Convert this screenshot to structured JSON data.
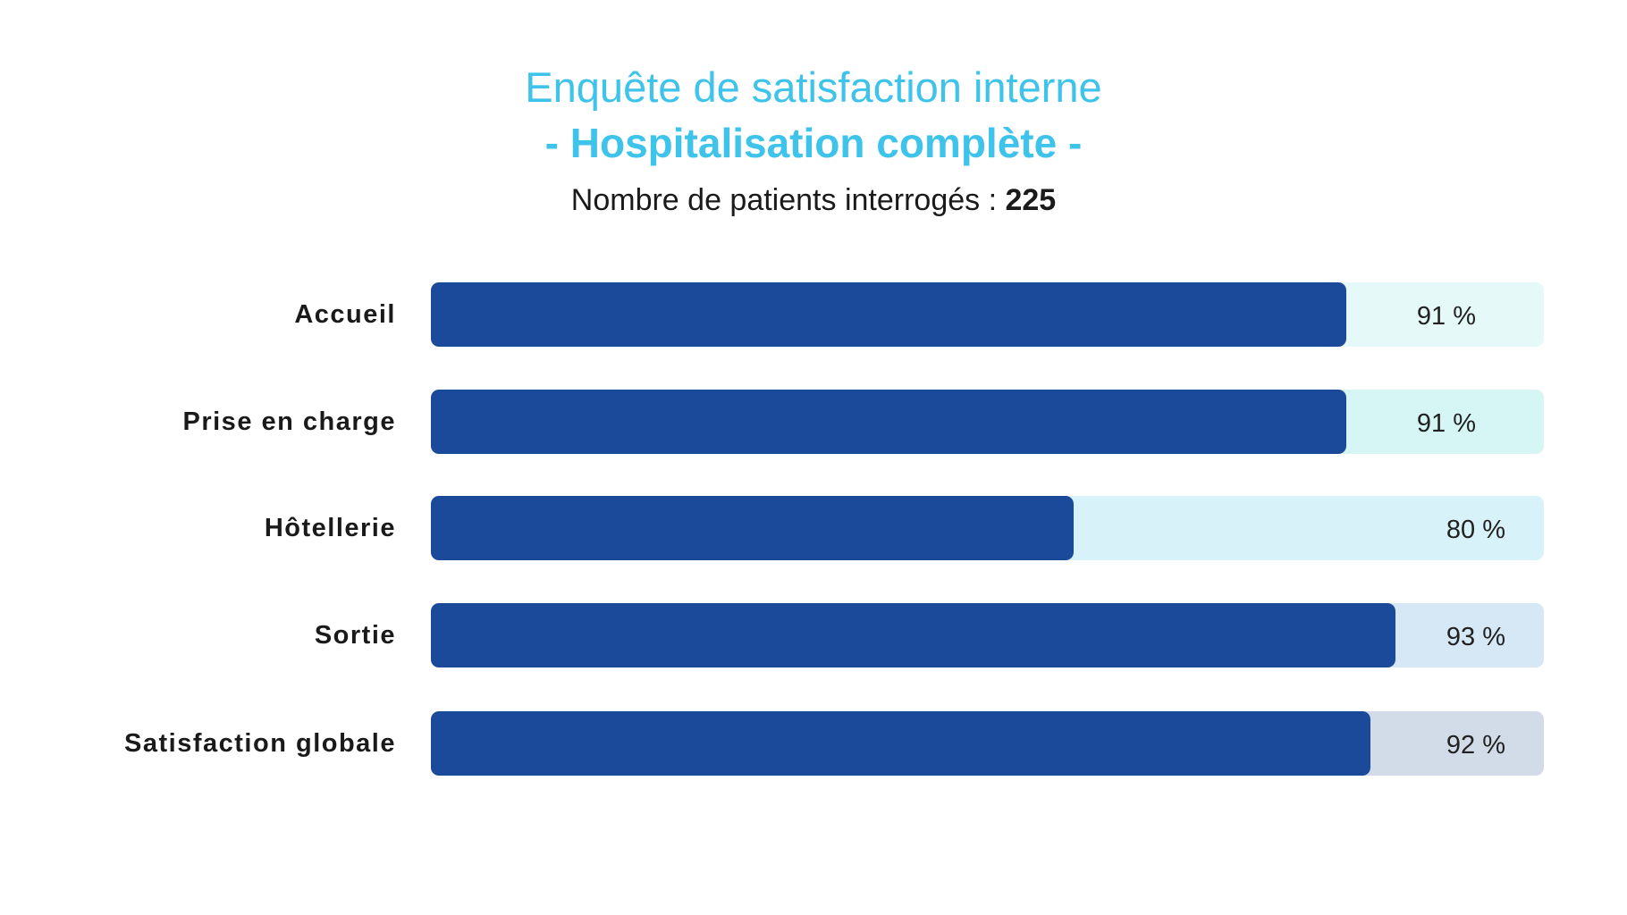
{
  "header": {
    "title": "Enquête de satisfaction interne",
    "subtitle": "- Hospitalisation complète -",
    "count_label": "Nombre de patients interrogés : ",
    "count_value": "225"
  },
  "colors": {
    "fill": "#1b4a9a",
    "title": "#3ec3ea",
    "tracks": [
      "#e6f9f9",
      "#d6f6f5",
      "#d8f2f9",
      "#d6e8f6",
      "#d1dce8"
    ]
  },
  "chart_data": {
    "type": "bar",
    "orientation": "horizontal",
    "title": "Enquête de satisfaction interne - Hospitalisation complète -",
    "categories": [
      "Accueil",
      "Prise en charge",
      "Hôtellerie",
      "Sortie",
      "Satisfaction globale"
    ],
    "values": [
      91,
      91,
      80,
      93,
      92
    ],
    "value_labels": [
      "91 %",
      "91 %",
      "80 %",
      "93 %",
      "92 %"
    ],
    "xlim": [
      54,
      99
    ],
    "unit": "%",
    "grid": false
  }
}
